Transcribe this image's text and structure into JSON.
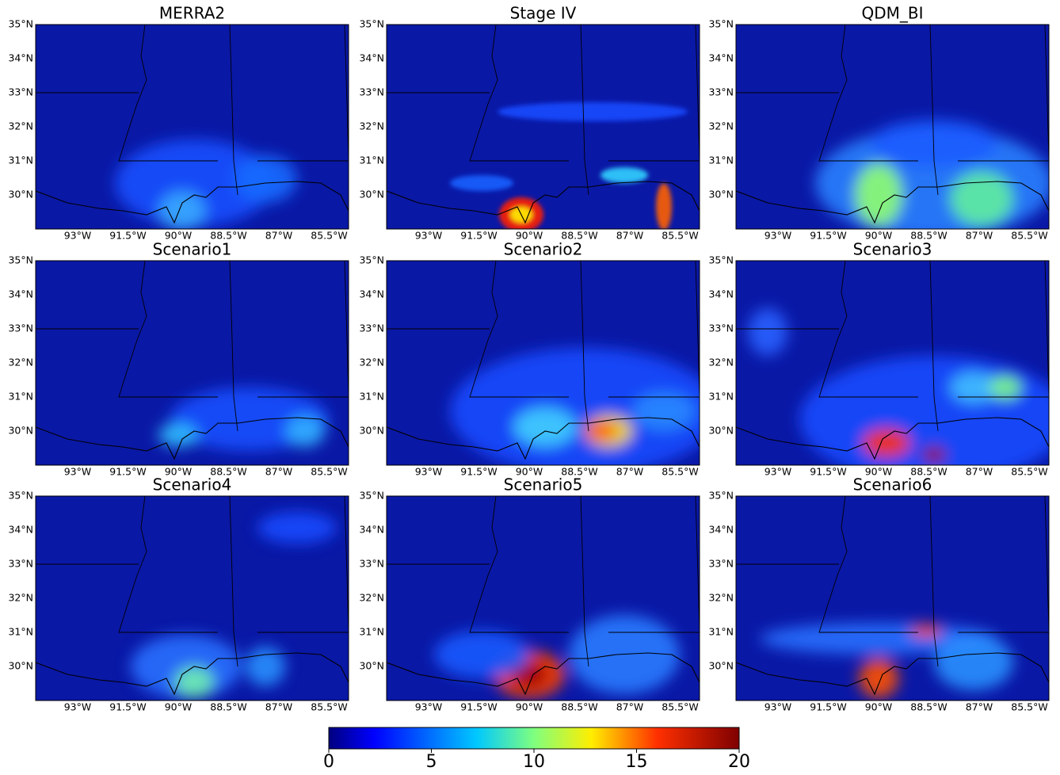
{
  "panels": [
    {
      "title": "MERRA2"
    },
    {
      "title": "Stage IV"
    },
    {
      "title": "QDM_BI"
    },
    {
      "title": "Scenario1"
    },
    {
      "title": "Scenario2"
    },
    {
      "title": "Scenario3"
    },
    {
      "title": "Scenario4"
    },
    {
      "title": "Scenario5"
    },
    {
      "title": "Scenario6"
    }
  ],
  "map": {
    "lat_labels": [
      "35°N",
      "34°N",
      "33°N",
      "32°N",
      "31°N",
      "30°N"
    ],
    "lon_labels": [
      "93°W",
      "91.5°W",
      "90°W",
      "88.5°W",
      "87°W",
      "85.5°W"
    ]
  },
  "colorbar": {
    "range": [
      0,
      20
    ],
    "ticks": [
      0,
      5,
      10,
      15,
      20
    ]
  }
}
